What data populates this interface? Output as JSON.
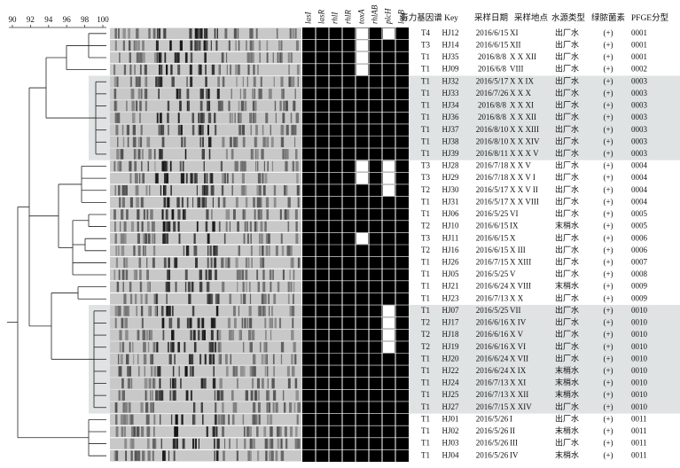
{
  "scale": {
    "ticks": [
      90,
      92,
      94,
      96,
      98,
      100
    ]
  },
  "genes": [
    "lasI",
    "lasR",
    "rhlI",
    "rhlR",
    "toxA",
    "rhlAB",
    "plcH",
    "lasB"
  ],
  "headers": [
    "毒力基因谱",
    "Key",
    "采样日期",
    "采样地点",
    "水源类型",
    "绿脓菌素",
    "PFGE分型"
  ],
  "rows": [
    [
      "T4",
      "HJ12",
      "2016/6/15",
      "XI",
      "出厂水",
      "(+)",
      "0001"
    ],
    [
      "T3",
      "HJ14",
      "2016/6/15",
      "XII",
      "出厂水",
      "(+)",
      "0001"
    ],
    [
      "T1",
      "HJ35",
      "2016/8/8",
      "X X XII",
      "出厂水",
      "(+)",
      "0001"
    ],
    [
      "T1",
      "HJ09",
      "2016/6/8",
      "VIII",
      "出厂水",
      "(+)",
      "0002"
    ],
    [
      "T1",
      "HJ32",
      "2016/5/17",
      "X X IX",
      "出厂水",
      "(+)",
      "0003"
    ],
    [
      "T1",
      "HJ33",
      "2016/7/26",
      "X X X",
      "出厂水",
      "(+)",
      "0003"
    ],
    [
      "T1",
      "HJ34",
      "2016/8/8",
      "X X XI",
      "出厂水",
      "(+)",
      "0003"
    ],
    [
      "T1",
      "HJ36",
      "2016/8/8",
      "X X XII",
      "出厂水",
      "(+)",
      "0003"
    ],
    [
      "T1",
      "HJ37",
      "2016/8/10",
      "X X XIII",
      "出厂水",
      "(+)",
      "0003"
    ],
    [
      "T1",
      "HJ38",
      "2016/8/10",
      "X X XIV",
      "出厂水",
      "(+)",
      "0003"
    ],
    [
      "T1",
      "HJ39",
      "2016/8/11",
      "X X X V",
      "出厂水",
      "(+)",
      "0003"
    ],
    [
      "T3",
      "HJ28",
      "2016/7/18",
      "X X V",
      "出厂水",
      "(+)",
      "0004"
    ],
    [
      "T3",
      "HJ29",
      "2016/7/18",
      "X X V I",
      "出厂水",
      "(+)",
      "0004"
    ],
    [
      "T2",
      "HJ30",
      "2016/5/17",
      "X X V II",
      "出厂水",
      "(+)",
      "0004"
    ],
    [
      "T1",
      "HJ31",
      "2016/5/17",
      "X X VIII",
      "出厂水",
      "(+)",
      "0004"
    ],
    [
      "T1",
      "HJ06",
      "2016/5/25",
      "VI",
      "出厂水",
      "(+)",
      "0005"
    ],
    [
      "T2",
      "HJ10",
      "2016/6/15",
      "IX",
      "末梢水",
      "(+)",
      "0005"
    ],
    [
      "T3",
      "HJ11",
      "2016/6/15",
      "X",
      "出厂水",
      "(+)",
      "0006"
    ],
    [
      "T2",
      "HJ16",
      "2016/6/15",
      "X III",
      "出厂水",
      "(+)",
      "0006"
    ],
    [
      "T1",
      "HJ26",
      "2016/7/15",
      "X XIII",
      "出厂水",
      "(+)",
      "0007"
    ],
    [
      "T1",
      "HJ05",
      "2016/5/25",
      "V",
      "出厂水",
      "(+)",
      "0008"
    ],
    [
      "T1",
      "HJ21",
      "2016/6/24",
      "X VIII",
      "末梢水",
      "(+)",
      "0009"
    ],
    [
      "T1",
      "HJ23",
      "2016/7/13",
      "X X",
      "出厂水",
      "(+)",
      "0009"
    ],
    [
      "T1",
      "HJ07",
      "2016/5/25",
      "VII",
      "出厂水",
      "(+)",
      "0010"
    ],
    [
      "T2",
      "HJ17",
      "2016/6/16",
      "X IV",
      "出厂水",
      "(+)",
      "0010"
    ],
    [
      "T2",
      "HJ18",
      "2016/6/16",
      "X V",
      "出厂水",
      "(+)",
      "0010"
    ],
    [
      "T2",
      "HJ19",
      "2016/6/16",
      "X VI",
      "出厂水",
      "(+)",
      "0010"
    ],
    [
      "T1",
      "HJ20",
      "2016/6/24",
      "X VII",
      "出厂水",
      "(+)",
      "0010"
    ],
    [
      "T1",
      "HJ22",
      "2016/6/24",
      "X IX",
      "末梢水",
      "(+)",
      "0010"
    ],
    [
      "T1",
      "HJ24",
      "2016/7/13",
      "X XI",
      "末梢水",
      "(+)",
      "0010"
    ],
    [
      "T1",
      "HJ25",
      "2016/7/13",
      "X XII",
      "末梢水",
      "(+)",
      "0010"
    ],
    [
      "T1",
      "HJ27",
      "2016/7/15",
      "X XIV",
      "出厂水",
      "(+)",
      "0010"
    ],
    [
      "T1",
      "HJ01",
      "2016/5/26",
      "I",
      "出厂水",
      "(+)",
      "0011"
    ],
    [
      "T1",
      "HJ02",
      "2016/5/26",
      "II",
      "末梢水",
      "(+)",
      "0011"
    ],
    [
      "T1",
      "HJ03",
      "2016/5/26",
      "III",
      "出厂水",
      "(+)",
      "0011"
    ],
    [
      "T1",
      "HJ04",
      "2016/5/26",
      "IV",
      "末梢水",
      "(+)",
      "0011"
    ]
  ]
}
